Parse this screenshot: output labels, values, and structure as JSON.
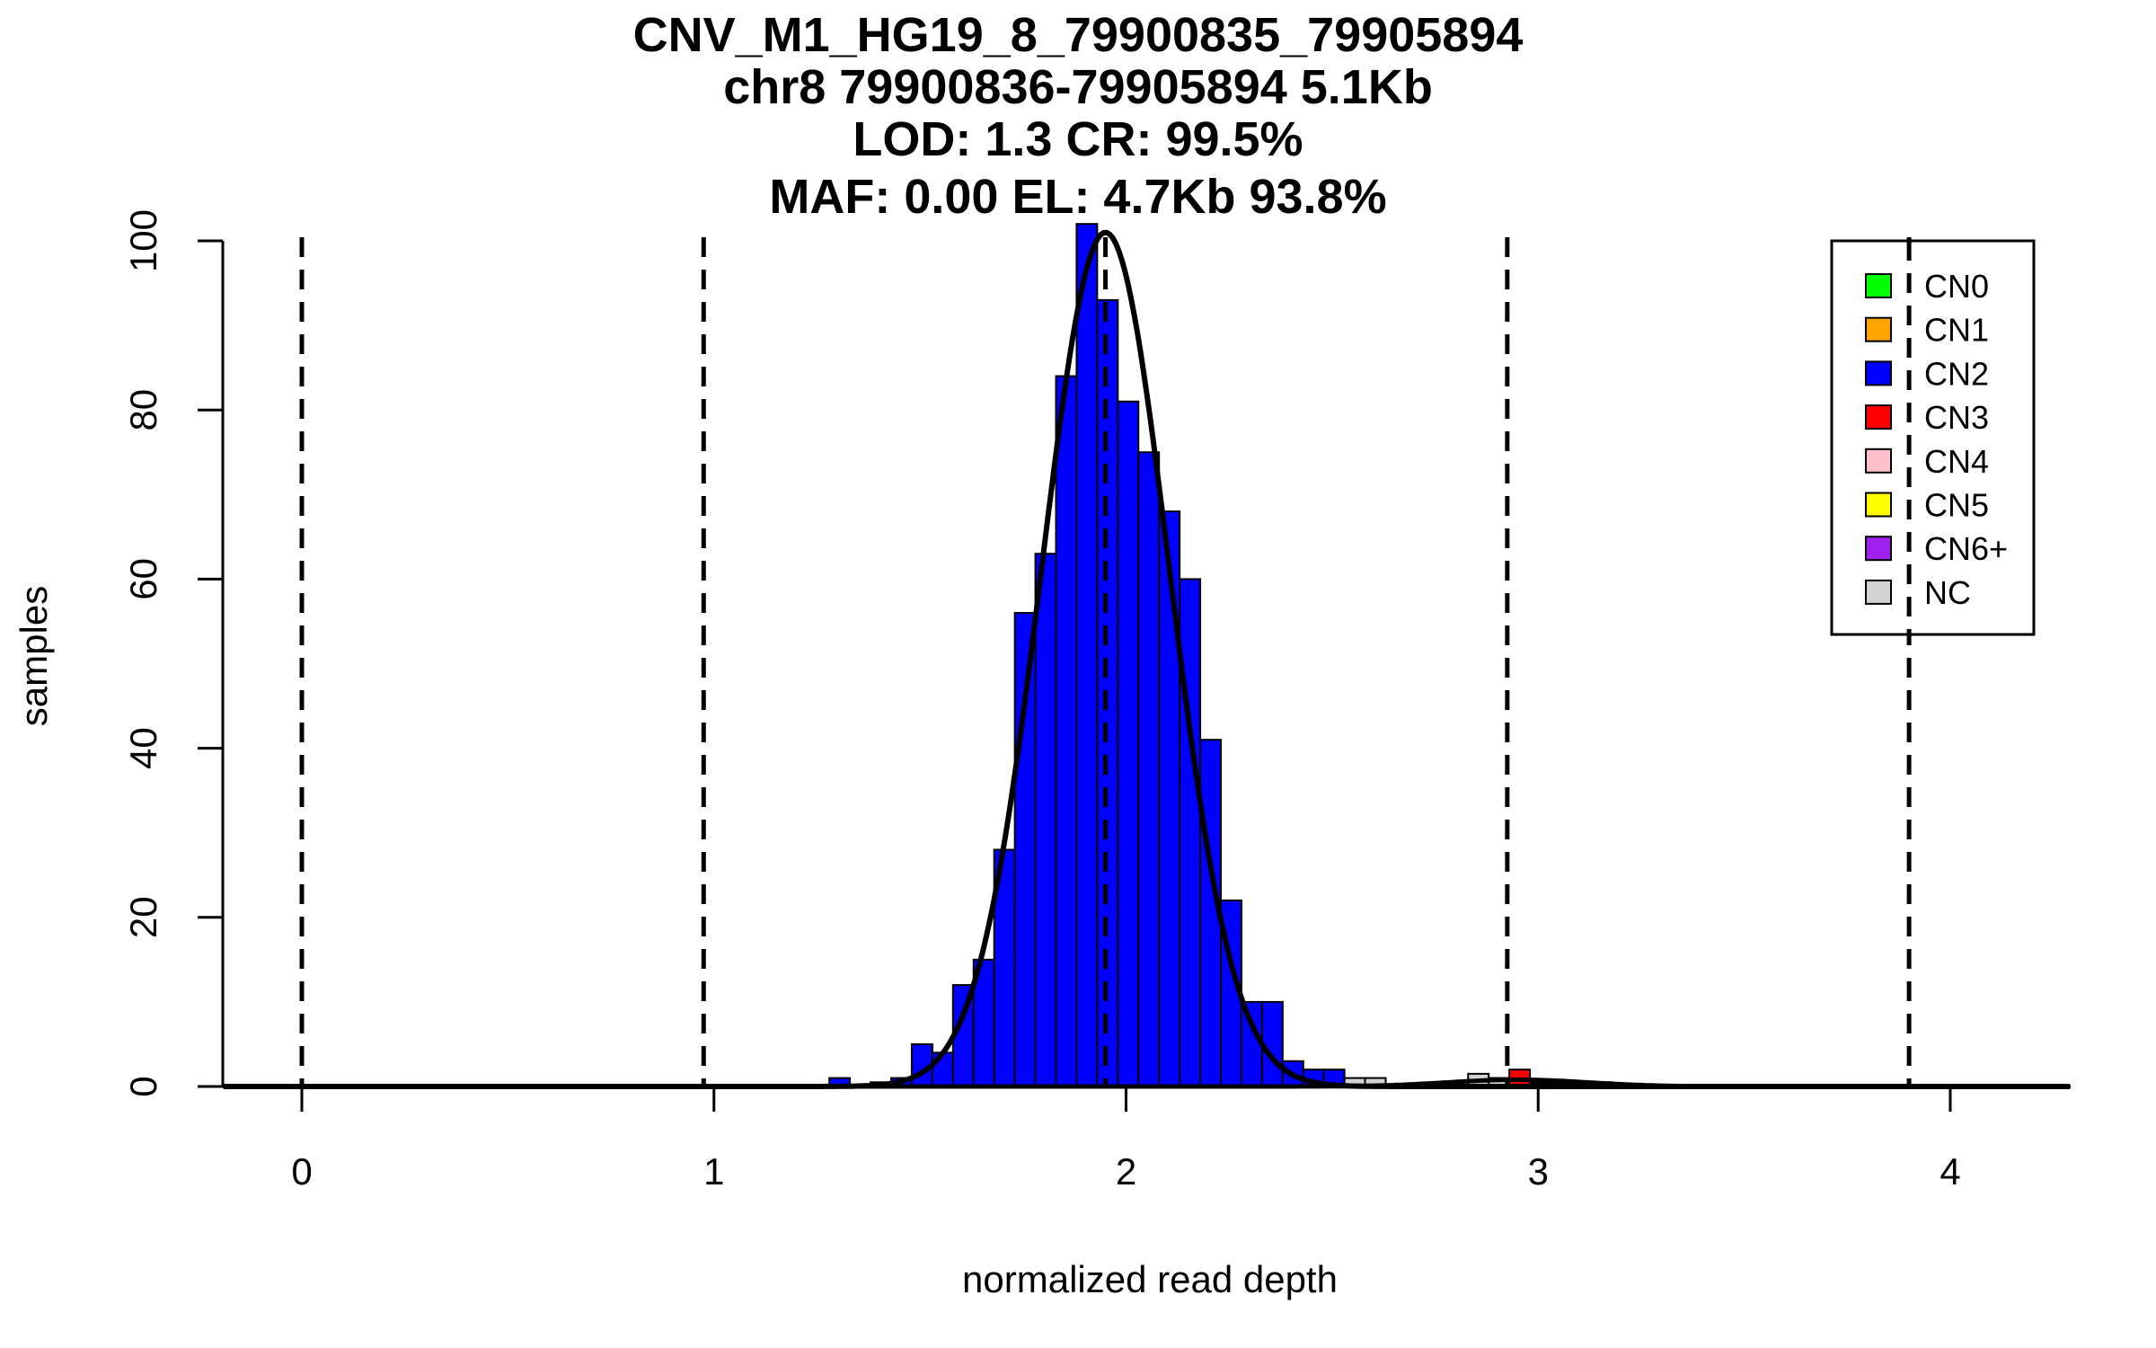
{
  "chart_data": {
    "type": "bar",
    "title_lines": [
      "CNV_M1_HG19_8_79900835_79905894",
      "chr8 79900836-79905894 5.1Kb",
      "LOD: 1.3 CR: 99.5%",
      "MAF: 0.00 EL: 4.7Kb 93.8%"
    ],
    "xlabel": "normalized read depth",
    "ylabel": "samples",
    "xlim": [
      -0.19,
      4.29
    ],
    "ylim": [
      0,
      102
    ],
    "x_ticks": [
      "0",
      "1",
      "2",
      "3",
      "4"
    ],
    "y_ticks": [
      "0",
      "20",
      "40",
      "60",
      "80",
      "100"
    ],
    "bin_width": 0.05,
    "series": [
      {
        "name": "CN2",
        "color": "#0000ff",
        "bins": [
          [
            1.28,
            1
          ],
          [
            1.38,
            0.5
          ],
          [
            1.43,
            1
          ],
          [
            1.48,
            5
          ],
          [
            1.53,
            4
          ],
          [
            1.58,
            12
          ],
          [
            1.63,
            15
          ],
          [
            1.68,
            28
          ],
          [
            1.73,
            56
          ],
          [
            1.78,
            63
          ],
          [
            1.83,
            84
          ],
          [
            1.88,
            102
          ],
          [
            1.93,
            93
          ],
          [
            1.98,
            81
          ],
          [
            2.03,
            75
          ],
          [
            2.08,
            68
          ],
          [
            2.13,
            60
          ],
          [
            2.18,
            41
          ],
          [
            2.23,
            22
          ],
          [
            2.28,
            10
          ],
          [
            2.33,
            10
          ],
          [
            2.38,
            3
          ],
          [
            2.43,
            2
          ],
          [
            2.48,
            2
          ]
        ]
      },
      {
        "name": "CN3",
        "color": "#ff0000",
        "bins": [
          [
            2.93,
            2
          ]
        ]
      },
      {
        "name": "NC",
        "color": "#d3d3d3",
        "bins": [
          [
            2.53,
            1
          ],
          [
            2.58,
            1
          ],
          [
            2.83,
            1.5
          ],
          [
            2.88,
            1
          ]
        ]
      }
    ],
    "small_bins": [
      [
        2.98,
        0.5
      ],
      [
        3.03,
        0.5
      ],
      [
        3.13,
        0.5
      ]
    ],
    "fit_curve": {
      "type": "gaussian",
      "mean": 1.95,
      "sd": 0.155,
      "peak": 101
    },
    "secondary_curve": {
      "type": "gaussian",
      "mean": 2.95,
      "sd": 0.17,
      "peak": 0.8
    },
    "dashed_lines_x": [
      0,
      0.975,
      1.95,
      2.925,
      3.9
    ],
    "legend": {
      "position": "top-right",
      "entries": [
        {
          "label": "CN0",
          "color": "#00ff00"
        },
        {
          "label": "CN1",
          "color": "#ffa500"
        },
        {
          "label": "CN2",
          "color": "#0000ff"
        },
        {
          "label": "CN3",
          "color": "#ff0000"
        },
        {
          "label": "CN4",
          "color": "#ffc0cb"
        },
        {
          "label": "CN5",
          "color": "#ffff00"
        },
        {
          "label": "CN6+",
          "color": "#a020f0"
        },
        {
          "label": "NC",
          "color": "#d3d3d3"
        }
      ]
    },
    "grid": false
  }
}
